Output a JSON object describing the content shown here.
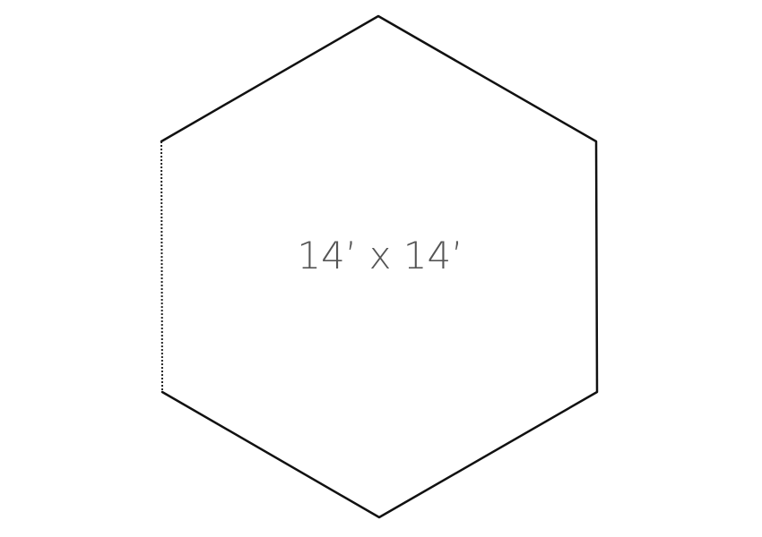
{
  "diagram": {
    "shape": "hexagon",
    "dimension_label": "14’ x 14’",
    "edge_color": "#111111",
    "label_color": "#555555",
    "background_color": "#ffffff",
    "dotted_edge": "left"
  }
}
